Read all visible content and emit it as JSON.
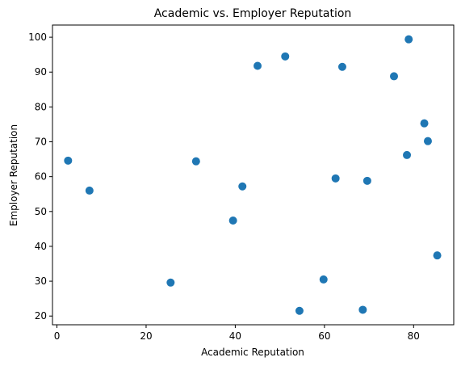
{
  "chart_data": {
    "type": "scatter",
    "title": "Academic vs. Employer Reputation",
    "xlabel": "Academic Reputation",
    "ylabel": "Employer Reputation",
    "xlim": [
      -1,
      89
    ],
    "ylim": [
      17.5,
      103.5
    ],
    "xticks": [
      0,
      20,
      40,
      60,
      80
    ],
    "yticks": [
      20,
      30,
      40,
      50,
      60,
      70,
      80,
      90,
      100
    ],
    "grid": false,
    "marker_color": "#1f77b4",
    "points": [
      {
        "x": 2.5,
        "y": 64.6
      },
      {
        "x": 7.3,
        "y": 56.0
      },
      {
        "x": 25.5,
        "y": 29.6
      },
      {
        "x": 31.2,
        "y": 64.4
      },
      {
        "x": 39.5,
        "y": 47.4
      },
      {
        "x": 41.6,
        "y": 57.2
      },
      {
        "x": 45.0,
        "y": 91.8
      },
      {
        "x": 51.2,
        "y": 94.5
      },
      {
        "x": 54.4,
        "y": 21.5
      },
      {
        "x": 59.8,
        "y": 30.5
      },
      {
        "x": 62.5,
        "y": 59.5
      },
      {
        "x": 64.0,
        "y": 91.5
      },
      {
        "x": 68.6,
        "y": 21.8
      },
      {
        "x": 69.6,
        "y": 58.8
      },
      {
        "x": 75.6,
        "y": 88.8
      },
      {
        "x": 78.5,
        "y": 66.2
      },
      {
        "x": 78.9,
        "y": 99.4
      },
      {
        "x": 82.4,
        "y": 75.3
      },
      {
        "x": 83.2,
        "y": 70.2
      },
      {
        "x": 85.3,
        "y": 37.4
      }
    ]
  }
}
